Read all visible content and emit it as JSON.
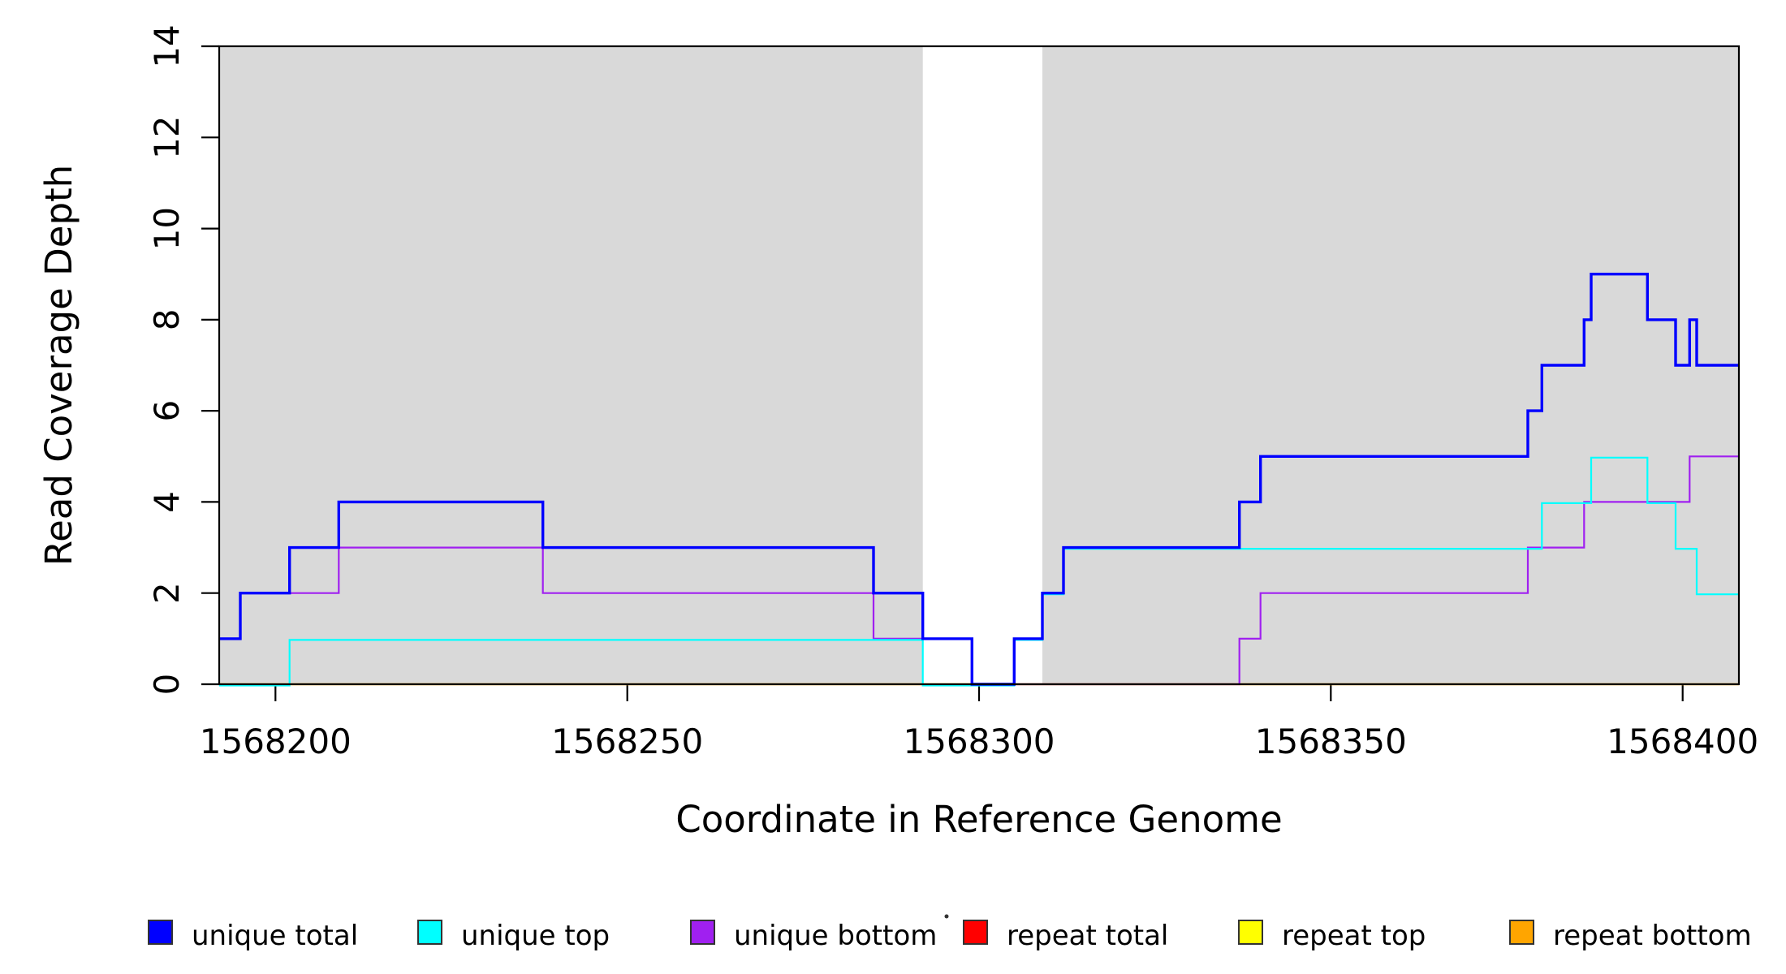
{
  "chart_data": {
    "type": "step-line",
    "title": "",
    "xlabel": "Coordinate in Reference Genome",
    "ylabel": "Read Coverage Depth",
    "xlim": [
      1568192,
      1568408
    ],
    "ylim": [
      0,
      14
    ],
    "x_ticks": [
      1568200,
      1568250,
      1568300,
      1568350,
      1568400
    ],
    "y_ticks": [
      0,
      2,
      4,
      6,
      8,
      10,
      12,
      14
    ],
    "grid": false,
    "legend_position": "bottom",
    "shade_color": "#D9D9D9",
    "shaded_regions": [
      [
        1568192,
        1568292
      ],
      [
        1568309,
        1568408
      ]
    ],
    "series": [
      {
        "name": "unique total",
        "color": "#0000FF",
        "steps": [
          [
            1568192,
            1
          ],
          [
            1568195,
            2
          ],
          [
            1568202,
            3
          ],
          [
            1568209,
            4
          ],
          [
            1568238,
            3
          ],
          [
            1568285,
            2
          ],
          [
            1568292,
            1
          ],
          [
            1568299,
            0
          ],
          [
            1568305,
            1
          ],
          [
            1568309,
            2
          ],
          [
            1568312,
            3
          ],
          [
            1568337,
            4
          ],
          [
            1568340,
            5
          ],
          [
            1568378,
            6
          ],
          [
            1568380,
            7
          ],
          [
            1568386,
            8
          ],
          [
            1568387,
            9
          ],
          [
            1568395,
            8
          ],
          [
            1568399,
            7
          ],
          [
            1568401,
            8
          ],
          [
            1568402,
            7
          ]
        ]
      },
      {
        "name": "unique top",
        "color": "#00FFFF",
        "steps": [
          [
            1568192,
            0
          ],
          [
            1568202,
            1
          ],
          [
            1568292,
            0
          ],
          [
            1568305,
            1
          ],
          [
            1568309,
            2
          ],
          [
            1568312,
            3
          ],
          [
            1568380,
            4
          ],
          [
            1568387,
            5
          ],
          [
            1568395,
            4
          ],
          [
            1568399,
            3
          ],
          [
            1568402,
            2
          ]
        ]
      },
      {
        "name": "unique bottom",
        "color": "#A020F0",
        "steps": [
          [
            1568192,
            1
          ],
          [
            1568195,
            2
          ],
          [
            1568209,
            3
          ],
          [
            1568238,
            2
          ],
          [
            1568285,
            1
          ],
          [
            1568299,
            0
          ],
          [
            1568337,
            1
          ],
          [
            1568340,
            2
          ],
          [
            1568378,
            3
          ],
          [
            1568386,
            4
          ],
          [
            1568401,
            5
          ]
        ]
      },
      {
        "name": "repeat total",
        "color": "#FF0000",
        "steps": [
          [
            1568192,
            0
          ]
        ]
      },
      {
        "name": "repeat top",
        "color": "#FFFF00",
        "steps": [
          [
            1568192,
            0
          ]
        ]
      },
      {
        "name": "repeat bottom",
        "color": "#FFA500",
        "steps": [
          [
            1568192,
            0
          ]
        ]
      }
    ],
    "draw_order": [
      "repeat total",
      "repeat top",
      "repeat bottom",
      "unique bottom",
      "unique top",
      "unique total"
    ]
  },
  "legend": {
    "items": [
      {
        "label": "unique total",
        "color": "#0000FF"
      },
      {
        "label": "unique top",
        "color": "#00FFFF"
      },
      {
        "label": "unique bottom",
        "color": "#A020F0"
      },
      {
        "label": "repeat total",
        "color": "#FF0000"
      },
      {
        "label": "repeat top",
        "color": "#FFFF00"
      },
      {
        "label": "repeat bottom",
        "color": "#FFA500"
      }
    ]
  }
}
